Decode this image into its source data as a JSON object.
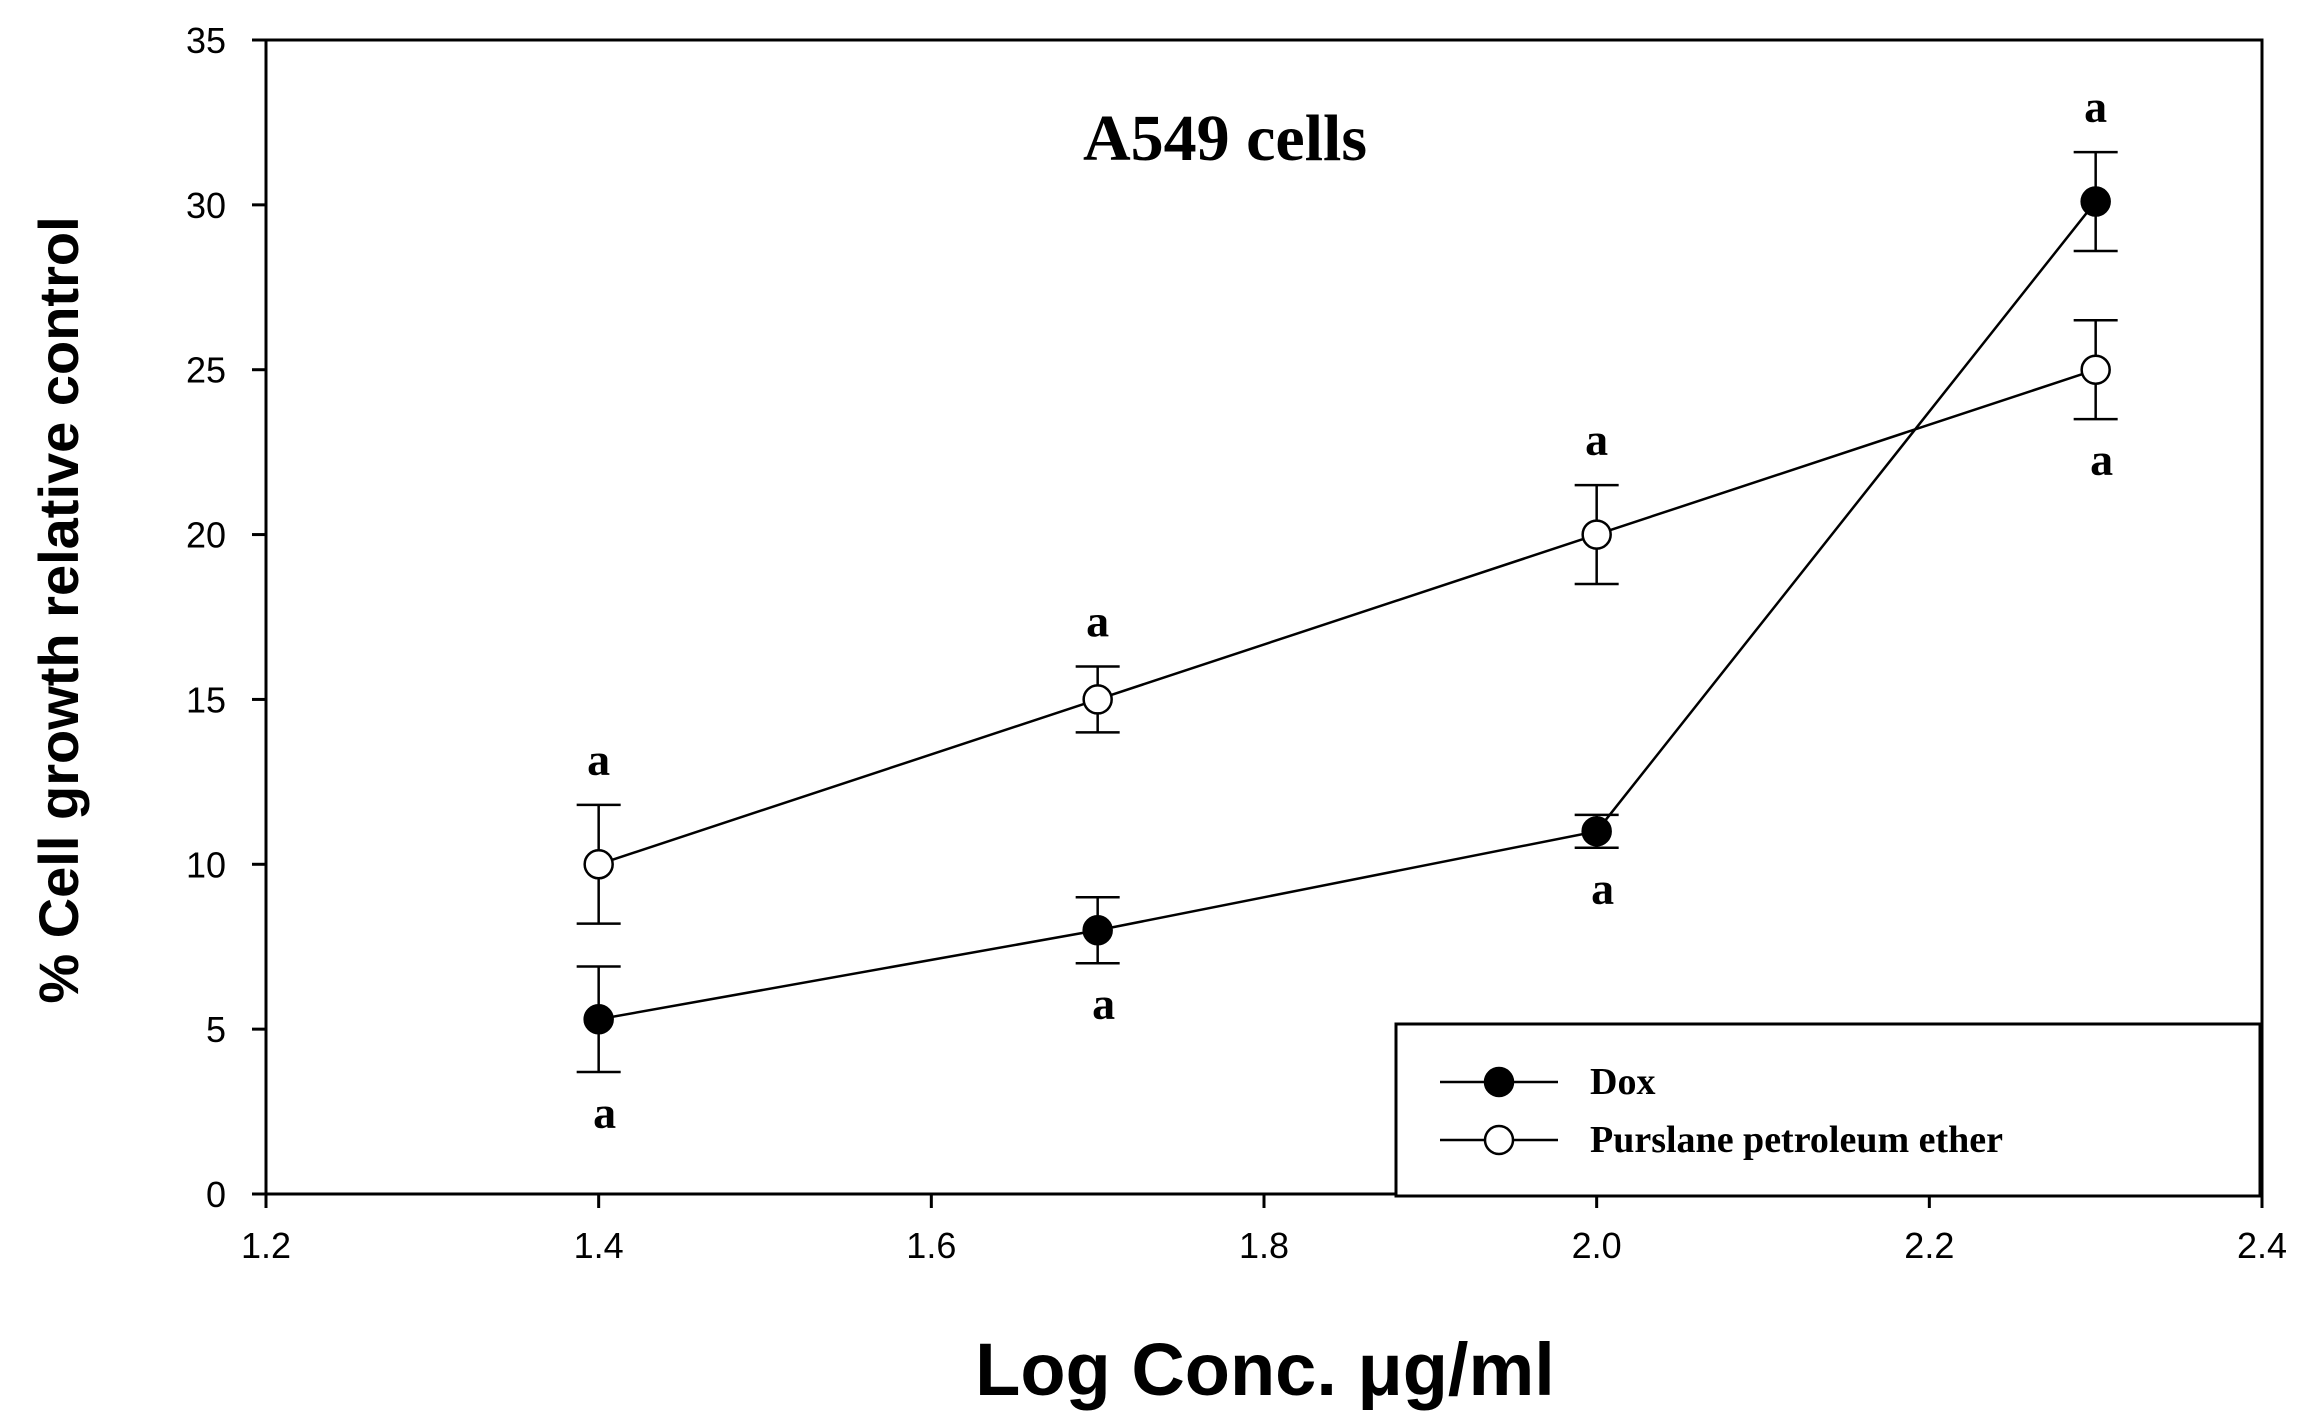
{
  "chart_data": {
    "type": "line",
    "title": "A549 cells",
    "xlabel": "Log Conc. μg/ml",
    "ylabel": "% Cell growth relative control",
    "xlim": [
      1.2,
      2.4
    ],
    "ylim": [
      0,
      35
    ],
    "x_ticks": [
      "1.2",
      "1.4",
      "1.6",
      "1.8",
      "2.0",
      "2.2",
      "2.4"
    ],
    "y_ticks": [
      "0",
      "5",
      "10",
      "15",
      "20",
      "25",
      "30",
      "35"
    ],
    "grid": false,
    "legend_position": "bottom-right",
    "series": [
      {
        "name": "Dox",
        "marker": "filled-circle",
        "color": "#000000",
        "x": [
          1.4,
          1.7,
          2.0,
          2.3
        ],
        "y": [
          5.3,
          8.0,
          11.0,
          30.1
        ],
        "error": [
          1.6,
          1.0,
          0.5,
          1.5
        ],
        "labels": [
          "a",
          "a",
          "a",
          "a"
        ],
        "label_side": [
          "below",
          "below",
          "below",
          "above"
        ]
      },
      {
        "name": "Purslane petroleum ether",
        "marker": "open-circle",
        "color": "#000000",
        "x": [
          1.4,
          1.7,
          2.0,
          2.3
        ],
        "y": [
          10.0,
          15.0,
          20.0,
          25.0
        ],
        "error": [
          1.8,
          1.0,
          1.5,
          1.5
        ],
        "labels": [
          "a",
          "a",
          "a",
          "a"
        ],
        "label_side": [
          "above",
          "above",
          "above",
          "below"
        ]
      }
    ]
  }
}
